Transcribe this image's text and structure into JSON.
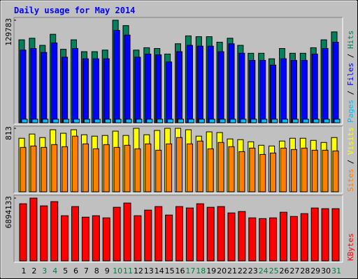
{
  "title": "Daily usage for May 2014",
  "chart_data": [
    {
      "type": "bar",
      "legend_separator": " / ",
      "ylim": [
        0,
        129783
      ],
      "yticks": [
        129783
      ],
      "series": [
        {
          "name": "Pages",
          "color": "#00c0ff",
          "values": [
            4500,
            4500,
            4500,
            4500,
            4500,
            4500,
            4500,
            4500,
            4500,
            4500,
            4500,
            4500,
            4500,
            4500,
            4500,
            4500,
            4500,
            4500,
            4500,
            4500,
            4500,
            4500,
            4500,
            4500,
            4500,
            4500,
            4500,
            4500,
            4500,
            4500,
            4500
          ]
        },
        {
          "name": "Files",
          "color": "#0000ff",
          "values": [
            92000,
            94000,
            89000,
            101000,
            83000,
            94000,
            81000,
            81000,
            81000,
            117000,
            111000,
            83000,
            87000,
            86000,
            77000,
            90000,
            98000,
            97000,
            97000,
            90000,
            100000,
            88000,
            79000,
            79000,
            73000,
            81000,
            79000,
            79000,
            87000,
            94000,
            102000
          ]
        },
        {
          "name": "Hits",
          "color": "#00805c",
          "values": [
            105000,
            107000,
            98000,
            112000,
            93000,
            105000,
            90000,
            90000,
            92000,
            129783,
            123000,
            92000,
            95000,
            94000,
            87000,
            100000,
            110000,
            109000,
            109000,
            102000,
            107000,
            98000,
            88000,
            88000,
            81000,
            94000,
            88000,
            88000,
            95000,
            105000,
            115000
          ]
        }
      ]
    },
    {
      "type": "bar",
      "legend_separator": " / ",
      "ylim": [
        0,
        813
      ],
      "yticks": [
        813
      ],
      "series": [
        {
          "name": "Sites",
          "color": "#ff8000",
          "values": [
            569,
            587,
            569,
            605,
            578,
            713,
            614,
            551,
            605,
            569,
            596,
            551,
            614,
            533,
            614,
            695,
            614,
            650,
            551,
            632,
            578,
            515,
            560,
            479,
            497,
            560,
            542,
            560,
            533,
            533,
            524
          ]
        },
        {
          "name": "Visits",
          "color": "#ffff00",
          "values": [
            686,
            740,
            695,
            795,
            750,
            795,
            731,
            713,
            722,
            777,
            722,
            813,
            731,
            786,
            813,
            813,
            795,
            713,
            768,
            759,
            677,
            668,
            641,
            596,
            587,
            650,
            686,
            686,
            659,
            632,
            695
          ]
        }
      ]
    },
    {
      "type": "bar",
      "ylim": [
        0,
        6894133
      ],
      "yticks": [
        6894133
      ],
      "categories": [
        "1",
        "2",
        "3",
        "4",
        "5",
        "6",
        "7",
        "8",
        "9",
        "10",
        "11",
        "12",
        "13",
        "14",
        "15",
        "16",
        "17",
        "18",
        "19",
        "20",
        "21",
        "22",
        "23",
        "24",
        "25",
        "26",
        "27",
        "28",
        "29",
        "30",
        "31"
      ],
      "category_colors": [
        "#000000",
        "#000000",
        "#008040",
        "#008040",
        "#000000",
        "#000000",
        "#000000",
        "#000000",
        "#000000",
        "#008040",
        "#008040",
        "#000000",
        "#000000",
        "#000000",
        "#000000",
        "#000000",
        "#008040",
        "#008040",
        "#000000",
        "#000000",
        "#000000",
        "#000000",
        "#000000",
        "#008040",
        "#008040",
        "#000000",
        "#000000",
        "#000000",
        "#000000",
        "#000000",
        "#008040"
      ],
      "series": [
        {
          "name": "KBytes",
          "color": "#ff0000",
          "values": [
            6274000,
            6894133,
            6042000,
            6507000,
            4958000,
            5965000,
            4803000,
            4958000,
            4725000,
            5887000,
            6352000,
            4958000,
            5577000,
            5965000,
            5035000,
            5965000,
            5810000,
            6274000,
            5887000,
            5965000,
            5267000,
            5422000,
            4725000,
            4648000,
            4725000,
            5345000,
            4880000,
            5190000,
            5810000,
            5732000,
            5732000
          ]
        }
      ]
    }
  ]
}
